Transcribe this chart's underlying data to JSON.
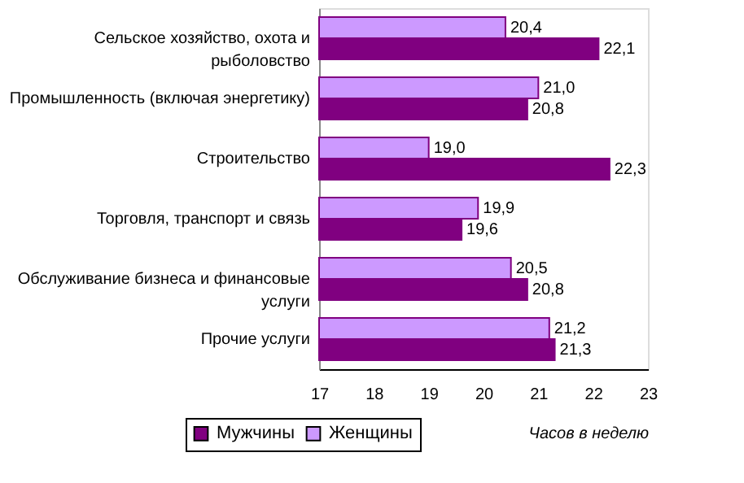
{
  "chart_data": {
    "type": "bar",
    "orientation": "horizontal",
    "xlabel": "Часов в неделю",
    "categories": [
      "Сельское хозяйство, охота и рыболовство",
      "Промышленность (включая энергетику)",
      "Строительство",
      "Торговля, транспорт и связь",
      "Обслуживание бизнеса и финансовые услуги",
      "Прочие услуги"
    ],
    "series": [
      {
        "name": "Мужчины",
        "color": "#800080",
        "values": [
          22.1,
          20.8,
          22.3,
          19.6,
          20.8,
          21.3
        ],
        "value_labels": [
          "22,1",
          "20,8",
          "22,3",
          "19,6",
          "20,8",
          "21,3"
        ]
      },
      {
        "name": "Женщины",
        "color": "#cc99ff",
        "values": [
          20.4,
          21.0,
          19.0,
          19.9,
          20.5,
          21.2
        ],
        "value_labels": [
          "20,4",
          "21,0",
          "19,0",
          "19,9",
          "20,5",
          "21,2"
        ]
      }
    ],
    "xlim": [
      17,
      23
    ],
    "xticks": [
      17,
      18,
      19,
      20,
      21,
      22,
      23
    ],
    "grid": false,
    "legend": "bottom"
  }
}
